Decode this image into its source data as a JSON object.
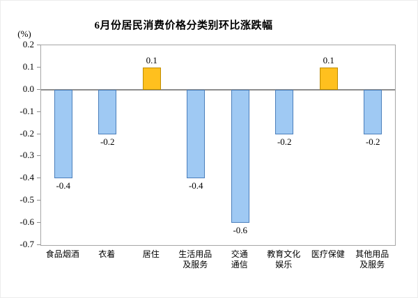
{
  "chart_data": {
    "type": "bar",
    "title": "6月份居民消费价格分类别环比涨跌幅",
    "unit_label": "(%)",
    "categories": [
      "食品烟酒",
      "衣着",
      "居住",
      "生活用品及服务",
      "交通通信",
      "教育文化娱乐",
      "医疗保健",
      "其他用品及服务"
    ],
    "category_label_lines": [
      [
        "食品烟酒"
      ],
      [
        "衣着"
      ],
      [
        "居住"
      ],
      [
        "生活用品",
        "及服务"
      ],
      [
        "交通",
        "通信"
      ],
      [
        "教育文化",
        "娱乐"
      ],
      [
        "医疗保健"
      ],
      [
        "其他用品",
        "及服务"
      ]
    ],
    "values": [
      -0.4,
      -0.2,
      0.1,
      -0.4,
      -0.6,
      -0.2,
      0.1,
      -0.2
    ],
    "value_labels": [
      "-0.4",
      "-0.2",
      "0.1",
      "-0.4",
      "-0.6",
      "-0.2",
      "0.1",
      "-0.2"
    ],
    "ylabel": "",
    "xlabel": "",
    "ylim": [
      -0.7,
      0.2
    ],
    "y_tick_labels": [
      "0.2",
      "0.1",
      "0.0",
      "-0.1",
      "-0.2",
      "-0.3",
      "-0.4",
      "-0.5",
      "-0.6",
      "-0.7"
    ],
    "y_ticks": [
      0.2,
      0.1,
      0.0,
      -0.1,
      -0.2,
      -0.3,
      -0.4,
      -0.5,
      -0.6,
      -0.7
    ],
    "grid": false,
    "legend": false,
    "colors": {
      "positive_bar_fill": "#FFC01E",
      "positive_bar_border": "#BE8C00",
      "negative_bar_fill": "#9FC9F3",
      "negative_bar_border": "#4A7EBB",
      "axis_border": "#A6A6A6",
      "zero_line": "#8C8C8C",
      "tick_mark": "#8C8C8C",
      "text": "#000000"
    }
  }
}
